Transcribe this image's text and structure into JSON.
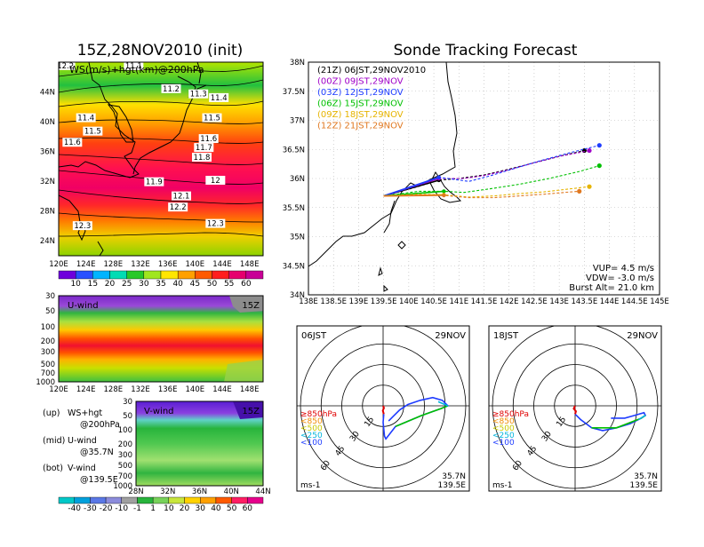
{
  "left": {
    "title": "15Z,28NOV2010 (init)",
    "map": {
      "subtitle": "WS(m/s)+hgt(km)@200hPa",
      "lat_labels": [
        "44N",
        "40N",
        "36N",
        "32N",
        "28N",
        "24N"
      ],
      "lon_labels": [
        "120E",
        "124E",
        "128E",
        "132E",
        "136E",
        "140E",
        "144E",
        "148E"
      ],
      "contour_labels": [
        {
          "text": "12.2",
          "lon": 121,
          "lat": 47.3
        },
        {
          "text": "11.1",
          "lon": 131,
          "lat": 47.3
        },
        {
          "text": "11.2",
          "lon": 136.5,
          "lat": 44.2
        },
        {
          "text": "11.3",
          "lon": 140.5,
          "lat": 43.5
        },
        {
          "text": "11.4",
          "lon": 143.5,
          "lat": 43.0
        },
        {
          "text": "11.4",
          "lon": 124,
          "lat": 40.3
        },
        {
          "text": "11.5",
          "lon": 142.5,
          "lat": 40.3
        },
        {
          "text": "11.5",
          "lon": 125,
          "lat": 38.5
        },
        {
          "text": "11.6",
          "lon": 142,
          "lat": 37.5
        },
        {
          "text": "11.6",
          "lon": 122,
          "lat": 37.0
        },
        {
          "text": "11.7",
          "lon": 141.3,
          "lat": 36.3
        },
        {
          "text": "11.8",
          "lon": 141,
          "lat": 35.0
        },
        {
          "text": "11.9",
          "lon": 134,
          "lat": 31.7
        },
        {
          "text": "12",
          "lon": 143,
          "lat": 31.9
        },
        {
          "text": "12.1",
          "lon": 138,
          "lat": 29.8
        },
        {
          "text": "12.2",
          "lon": 137.5,
          "lat": 28.3
        },
        {
          "text": "12.3",
          "lon": 123.5,
          "lat": 25.8
        },
        {
          "text": "12.3",
          "lon": 143,
          "lat": 26.1
        }
      ]
    },
    "ws_colorbar": [
      "10",
      "15",
      "20",
      "25",
      "30",
      "35",
      "40",
      "45",
      "50",
      "55",
      "60"
    ],
    "u_panel": {
      "label": "U-wind",
      "time": "15Z",
      "p_labels": [
        "30",
        "50",
        "100",
        "200",
        "300",
        "500",
        "700",
        "1000"
      ],
      "lon_labels": [
        "120E",
        "124E",
        "128E",
        "132E",
        "136E",
        "140E",
        "144E",
        "148E"
      ]
    },
    "v_panel": {
      "label": "V-wind",
      "time": "15Z",
      "p_labels": [
        "30",
        "50",
        "100",
        "200",
        "300",
        "500",
        "700",
        "1000"
      ],
      "lat_labels": [
        "28N",
        "32N",
        "36N",
        "40N",
        "44N"
      ]
    },
    "notes": [
      [
        "(up)",
        "WS+hgt",
        "@200hPa"
      ],
      [
        "(mid)",
        "U-wind",
        "@35.7N"
      ],
      [
        "(bot)",
        "V-wind",
        "@139.5E"
      ]
    ],
    "uv_colorbar": [
      "-40",
      "-30",
      "-20",
      "-10",
      "-1",
      "1",
      "10",
      "20",
      "30",
      "40",
      "50",
      "60"
    ]
  },
  "right": {
    "title": "Sonde Tracking Forecast"
  },
  "chart_data": [
    {
      "type": "line",
      "title": "Sonde Tracking Forecast",
      "x_ticks": [
        "138E",
        "138.5E",
        "139E",
        "139.5E",
        "140E",
        "140.5E",
        "141E",
        "141.5E",
        "142E",
        "142.5E",
        "143E",
        "143.5E",
        "144E",
        "144.5E",
        "145E"
      ],
      "y_ticks": [
        "34N",
        "34.5N",
        "35N",
        "35.5N",
        "36N",
        "36.5N",
        "37N",
        "37.5N",
        "38N"
      ],
      "xlim": [
        138,
        145
      ],
      "ylim": [
        34,
        38
      ],
      "grid": true,
      "legend_position": "top-left",
      "series": [
        {
          "name": "(21Z) 06JST,29NOV2010",
          "color": "#000000",
          "launch": [
            139.5,
            35.7
          ],
          "x": [
            139.5,
            140.1,
            140.6,
            141.0,
            141.5,
            142.0,
            142.5,
            143.0,
            143.5
          ],
          "y": [
            35.7,
            35.84,
            35.97,
            36.0,
            36.06,
            36.16,
            36.27,
            36.38,
            36.48
          ]
        },
        {
          "name": "(00Z) 09JST,29NOV",
          "color": "#a000c8",
          "launch": [
            139.5,
            35.7
          ],
          "x": [
            139.5,
            140.1,
            140.6,
            141.1,
            141.5,
            142.0,
            142.5,
            143.0,
            143.6
          ],
          "y": [
            35.7,
            35.88,
            36.0,
            36.0,
            36.05,
            36.15,
            36.27,
            36.38,
            36.48
          ]
        },
        {
          "name": "(03Z) 12JST,29NOV",
          "color": "#1e3cff",
          "launch": [
            139.5,
            35.7
          ],
          "x": [
            139.5,
            140.1,
            140.6,
            141.2,
            141.6,
            142.1,
            142.6,
            143.2,
            143.8
          ],
          "y": [
            35.7,
            35.86,
            36.02,
            35.95,
            36.04,
            36.17,
            36.3,
            36.44,
            36.57
          ]
        },
        {
          "name": "(06Z) 15JST,29NOV",
          "color": "#00c000",
          "launch": [
            139.5,
            35.7
          ],
          "x": [
            139.5,
            140.2,
            140.7,
            141.1,
            141.6,
            142.2,
            142.8,
            143.4,
            143.8
          ],
          "y": [
            35.7,
            35.78,
            35.78,
            35.76,
            35.82,
            35.9,
            36.0,
            36.12,
            36.22
          ]
        },
        {
          "name": "(09Z) 18JST,29NOV",
          "color": "#e6b400",
          "launch": [
            139.5,
            35.7
          ],
          "x": [
            139.5,
            140.2,
            140.7,
            141.2,
            141.7,
            142.2,
            142.7,
            143.2,
            143.6
          ],
          "y": [
            35.7,
            35.73,
            35.72,
            35.68,
            35.7,
            35.74,
            35.77,
            35.82,
            35.86
          ]
        },
        {
          "name": "(12Z) 21JST,29NOV",
          "color": "#e07820",
          "launch": [
            139.5,
            35.7
          ],
          "x": [
            139.5,
            140.2,
            140.7,
            141.2,
            141.7,
            142.2,
            142.7,
            143.1,
            143.4
          ],
          "y": [
            35.7,
            35.72,
            35.71,
            35.67,
            35.67,
            35.7,
            35.73,
            35.76,
            35.78
          ]
        }
      ],
      "annotations": [
        "VUP= 4.5 m/s",
        "VDW= -3.0 m/s",
        "Burst Alt= 21.0 km"
      ]
    },
    {
      "type": "scatter",
      "title": "06JST",
      "date": "29NOV",
      "rings_knot_labels": [
        "15",
        "30",
        "45",
        "60"
      ],
      "units": "ms-1",
      "location": [
        "35.7N",
        "139.5E"
      ],
      "layer_legend": [
        "≥850hPa",
        "<850",
        "<500",
        "<250",
        "<100"
      ],
      "layer_colors": [
        "#e00000",
        "#f08c00",
        "#c8c800",
        "#00b4dc",
        "#1e3cff"
      ],
      "hodograph": {
        "red": [
          [
            0,
            0
          ],
          [
            0.6,
            -1.5
          ],
          [
            -0.2,
            -3.5
          ],
          [
            0.5,
            -6.0
          ]
        ],
        "blue": [
          [
            0.5,
            -6.0
          ],
          [
            0,
            -12
          ],
          [
            1,
            -22
          ],
          [
            2,
            -24
          ],
          [
            9,
            -15
          ],
          [
            28,
            -7
          ],
          [
            42,
            -2
          ],
          [
            47,
            0
          ],
          [
            43,
            4
          ],
          [
            36,
            6
          ],
          [
            27,
            4
          ],
          [
            18,
            1
          ],
          [
            12,
            -3
          ],
          [
            8,
            -7
          ],
          [
            4,
            -11
          ]
        ],
        "green": [
          [
            9,
            -15
          ],
          [
            28,
            -7
          ],
          [
            42,
            -2
          ],
          [
            47,
            0
          ]
        ],
        "cyan": [
          [
            40,
            3
          ],
          [
            47,
            0
          ]
        ]
      }
    },
    {
      "type": "scatter",
      "title": "18JST",
      "date": "29NOV",
      "rings_knot_labels": [
        "15",
        "30",
        "45",
        "60"
      ],
      "units": "ms-1",
      "location": [
        "35.7N",
        "139.5E"
      ],
      "layer_legend": [
        "≥850hPa",
        "<850",
        "<500",
        "<250",
        "<100"
      ],
      "layer_colors": [
        "#e00000",
        "#f08c00",
        "#c8c800",
        "#00b4dc",
        "#1e3cff"
      ],
      "hodograph": {
        "red": [
          [
            0,
            0
          ],
          [
            -1,
            -2
          ],
          [
            0.6,
            -4
          ],
          [
            0,
            -6
          ]
        ],
        "blue": [
          [
            0,
            -6
          ],
          [
            4,
            -10
          ],
          [
            12,
            -16
          ],
          [
            20,
            -18
          ],
          [
            30,
            -16
          ],
          [
            40,
            -13
          ],
          [
            48,
            -9
          ],
          [
            51,
            -7
          ],
          [
            50,
            -5
          ],
          [
            43,
            -7
          ],
          [
            36,
            -9
          ],
          [
            26,
            -9
          ]
        ],
        "green": [
          [
            12,
            -16
          ],
          [
            30,
            -16
          ],
          [
            48,
            -9
          ],
          [
            51,
            -7
          ]
        ],
        "cyan": [
          [
            46,
            -10
          ],
          [
            51,
            -7
          ]
        ]
      }
    }
  ]
}
